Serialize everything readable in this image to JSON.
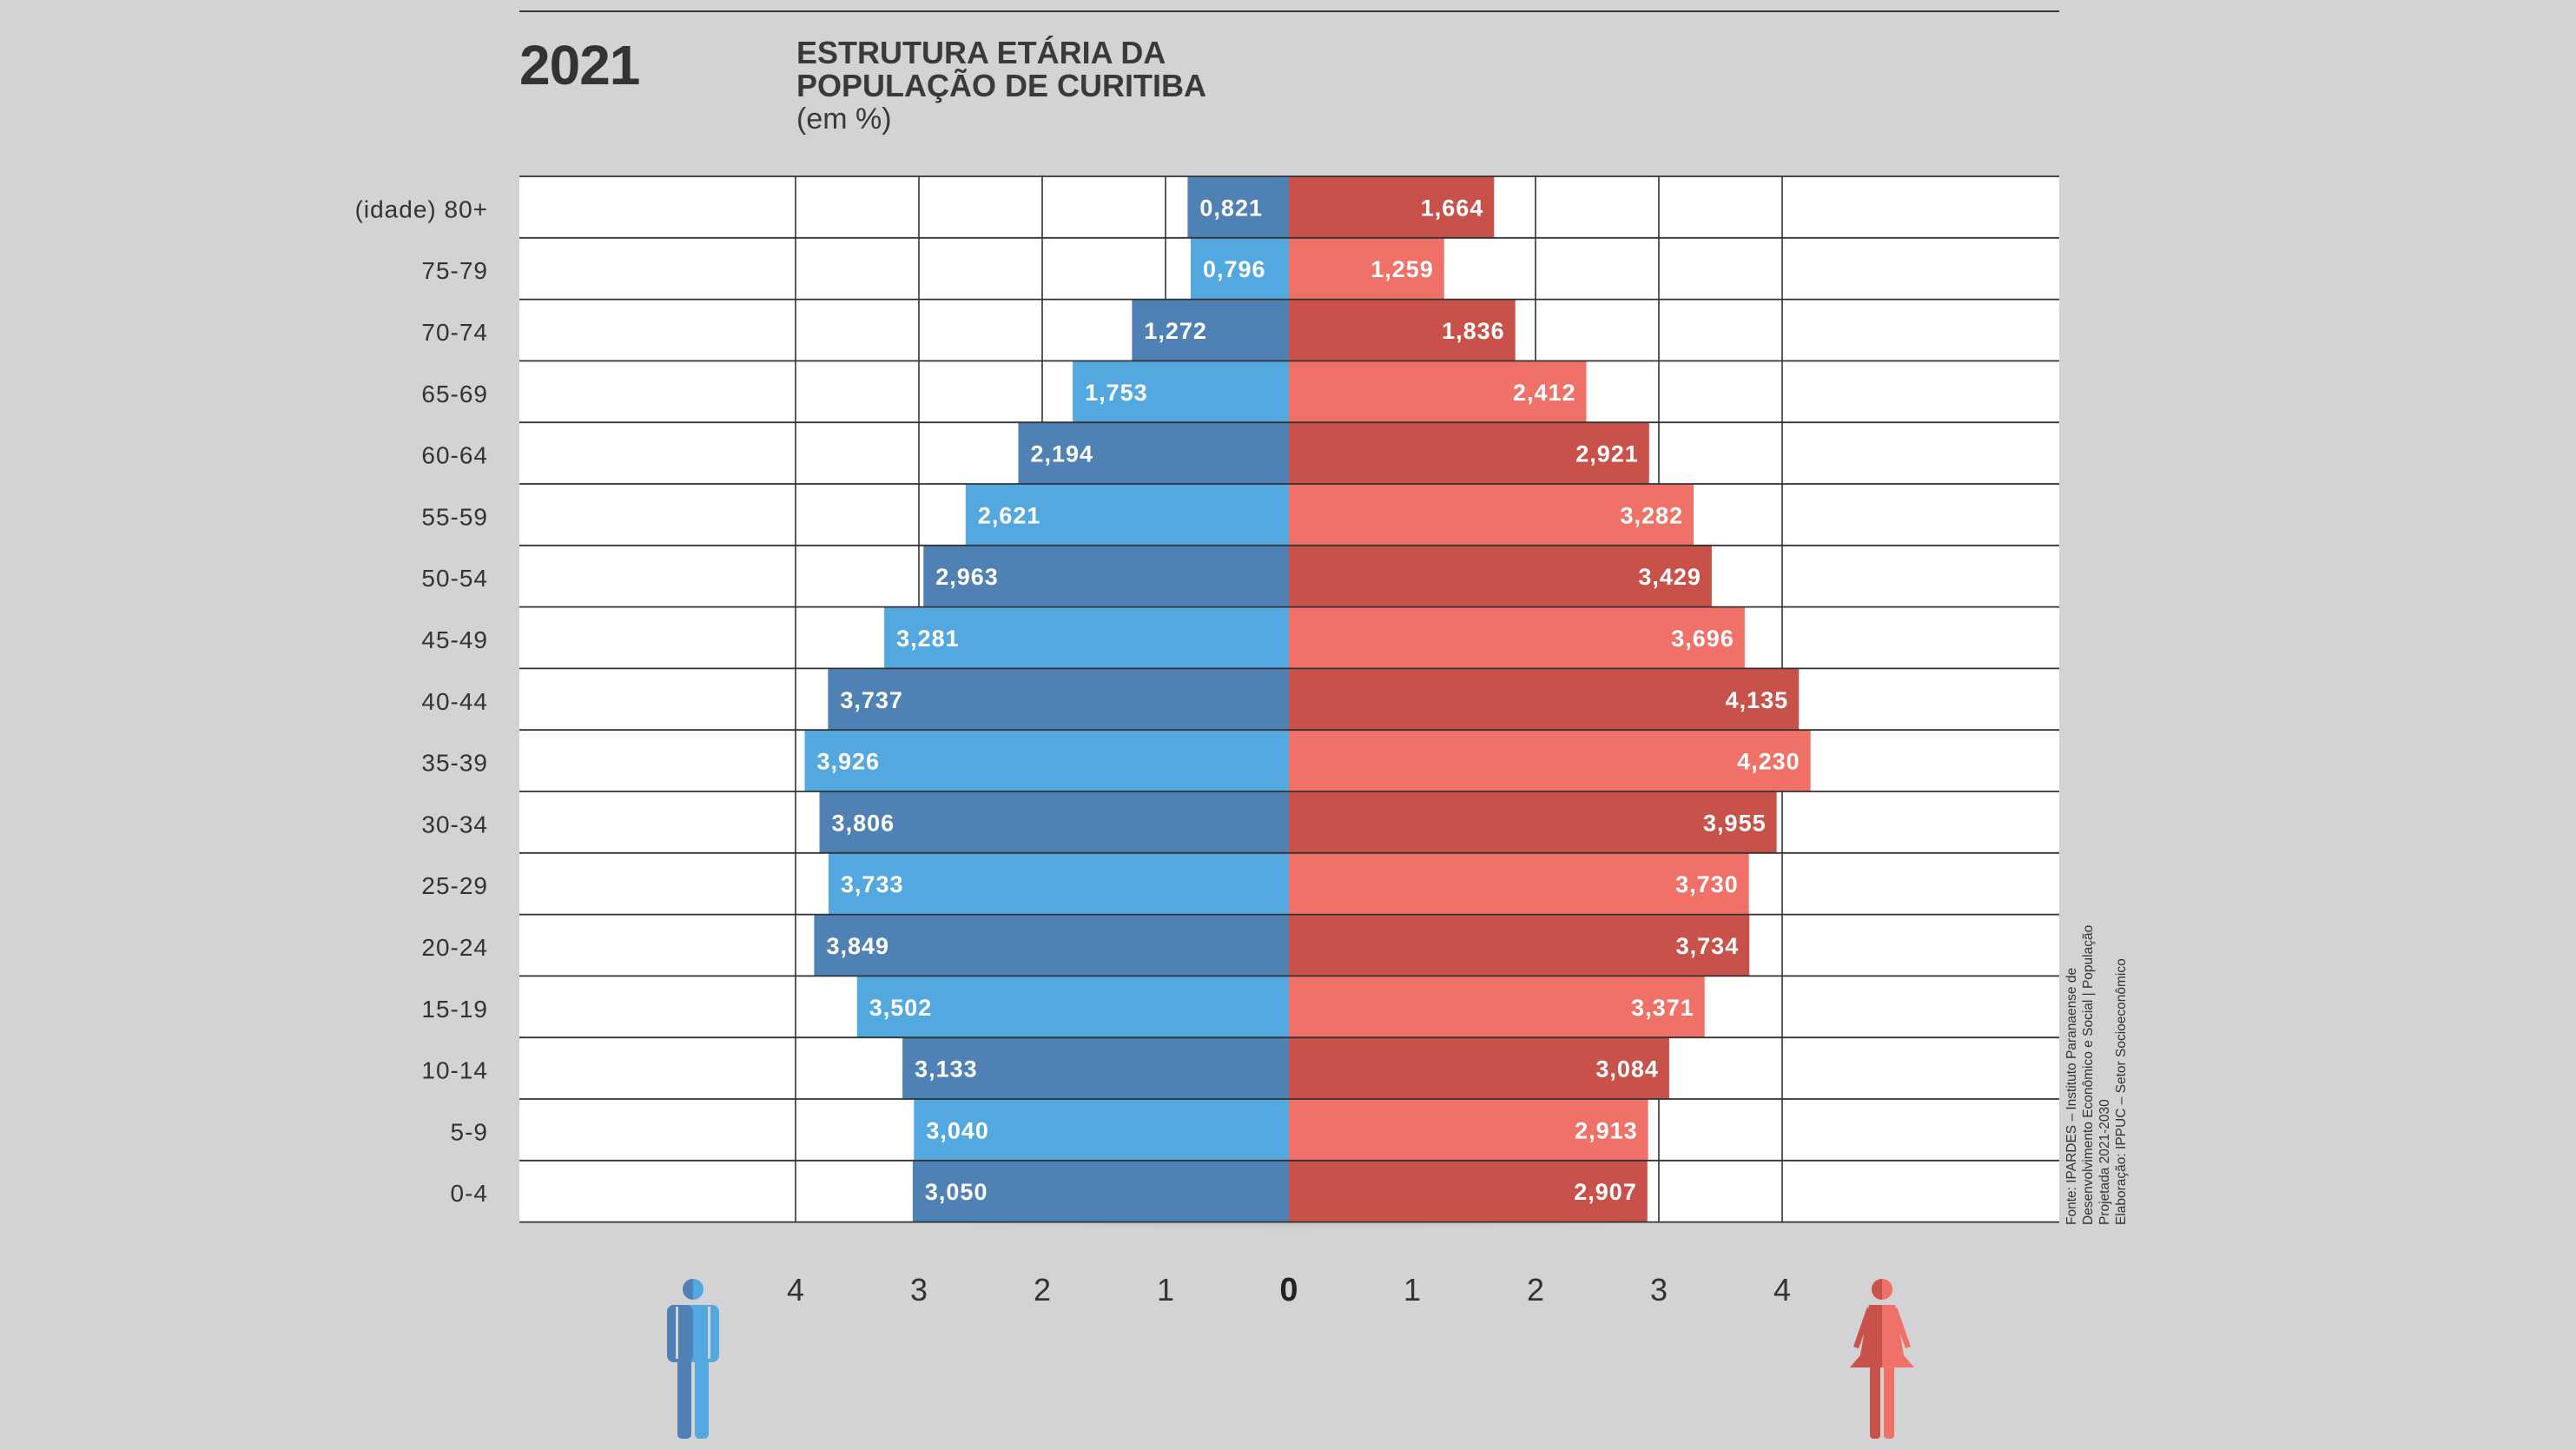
{
  "header": {
    "year": "2021",
    "title_line1": "ESTRUTURA ETÁRIA DA",
    "title_line2": "POPULAÇÃO DE CURITIBA",
    "subtitle": "(em %)"
  },
  "source": {
    "line1": "Fonte: IPARDES – Instituto Paranaense de",
    "line2": "Desenvolvimento Econômico e Social | População",
    "line3": "Projetada 2021-2030",
    "line4": "Elaboração: IPPUC – Setor Socioeconômico"
  },
  "colors": {
    "male_dark": "#4f81b5",
    "male_light": "#54a8e0",
    "female_dark": "#c8524a",
    "female_light": "#f07168",
    "grid": "#333333",
    "plot_bg": "#ffffff",
    "page_bg": "#d3d3d5"
  },
  "icons": {
    "male": "male-person-icon",
    "female": "female-person-icon"
  },
  "chart_data": {
    "type": "bar",
    "orientation": "horizontal-population-pyramid",
    "categories": [
      "(idade) 80+",
      "75-79",
      "70-74",
      "65-69",
      "60-64",
      "55-59",
      "50-54",
      "45-49",
      "40-44",
      "35-39",
      "30-34",
      "25-29",
      "20-24",
      "15-19",
      "10-14",
      "5-9",
      "0-4"
    ],
    "series": [
      {
        "side": "left",
        "values": [
          0.821,
          0.796,
          1.272,
          1.753,
          2.194,
          2.621,
          2.963,
          3.281,
          3.737,
          3.926,
          3.806,
          3.733,
          3.849,
          3.502,
          3.133,
          3.04,
          3.05
        ],
        "labels": [
          "0,821",
          "0,796",
          "1,272",
          "1,753",
          "2,194",
          "2,621",
          "2,963",
          "3,281",
          "3,737",
          "3,926",
          "3,806",
          "3,733",
          "3,849",
          "3,502",
          "3,133",
          "3,040",
          "3,050"
        ]
      },
      {
        "side": "right",
        "values": [
          1.664,
          1.259,
          1.836,
          2.412,
          2.921,
          3.282,
          3.429,
          3.696,
          4.135,
          4.23,
          3.955,
          3.73,
          3.734,
          3.371,
          3.084,
          2.913,
          2.907
        ],
        "labels": [
          "1,664",
          "1,259",
          "1,836",
          "2,412",
          "2,921",
          "3,282",
          "3,429",
          "3,696",
          "4,135",
          "4,230",
          "3,955",
          "3,730",
          "3,734",
          "3,371",
          "3,084",
          "2,913",
          "2,907"
        ]
      }
    ],
    "x_ticks_left": [
      "4",
      "3",
      "2",
      "1"
    ],
    "x_tick_zero": "0",
    "x_ticks_right": [
      "1",
      "2",
      "3",
      "4"
    ],
    "xlim": [
      -6.25,
      6.25
    ],
    "grid": true
  }
}
